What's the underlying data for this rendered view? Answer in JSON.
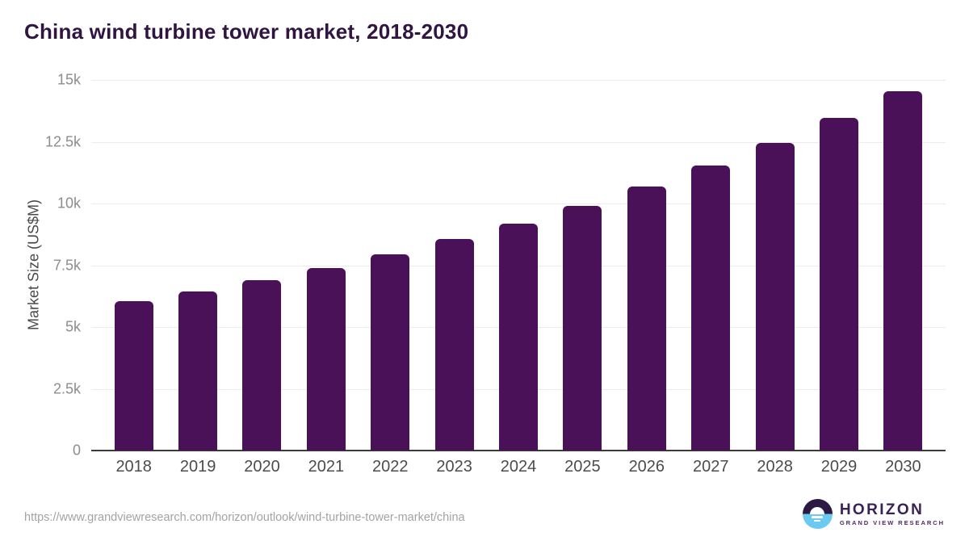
{
  "chart": {
    "title": "China wind turbine tower market, 2018-2030",
    "y_axis_title": "Market Size (US$M)"
  },
  "chart_data": {
    "type": "bar",
    "title": "China wind turbine tower market, 2018-2030",
    "xlabel": "",
    "ylabel": "Market Size (US$M)",
    "categories": [
      "2018",
      "2019",
      "2020",
      "2021",
      "2022",
      "2023",
      "2024",
      "2025",
      "2026",
      "2027",
      "2028",
      "2029",
      "2030"
    ],
    "values": [
      6050,
      6450,
      6900,
      7400,
      7950,
      8550,
      9200,
      9900,
      10700,
      11550,
      12450,
      13450,
      14550
    ],
    "ylim": [
      0,
      15000
    ],
    "ytick_values": [
      0,
      2500,
      5000,
      7500,
      10000,
      12500,
      15000
    ],
    "ytick_labels": [
      "0",
      "2.5k",
      "5k",
      "7.5k",
      "10k",
      "12.5k",
      "15k"
    ],
    "grid": true,
    "legend": false,
    "bar_color": "#4a1159"
  },
  "footer": {
    "source_url": "https://www.grandviewresearch.com/horizon/outlook/wind-turbine-tower-market/china",
    "logo": {
      "name": "HORIZON",
      "subtitle": "GRAND VIEW RESEARCH"
    }
  },
  "colors": {
    "bar": "#4a1159",
    "title_text": "#2f1540",
    "axis_line": "#3c3c3c",
    "gridline": "#ececec",
    "y_tick_text": "#8d8d8d",
    "x_tick_text": "#4c4c4c",
    "source_text": "#a3a3a3",
    "logo_purple": "#2b1a44",
    "logo_blue": "#6cc9ef"
  }
}
